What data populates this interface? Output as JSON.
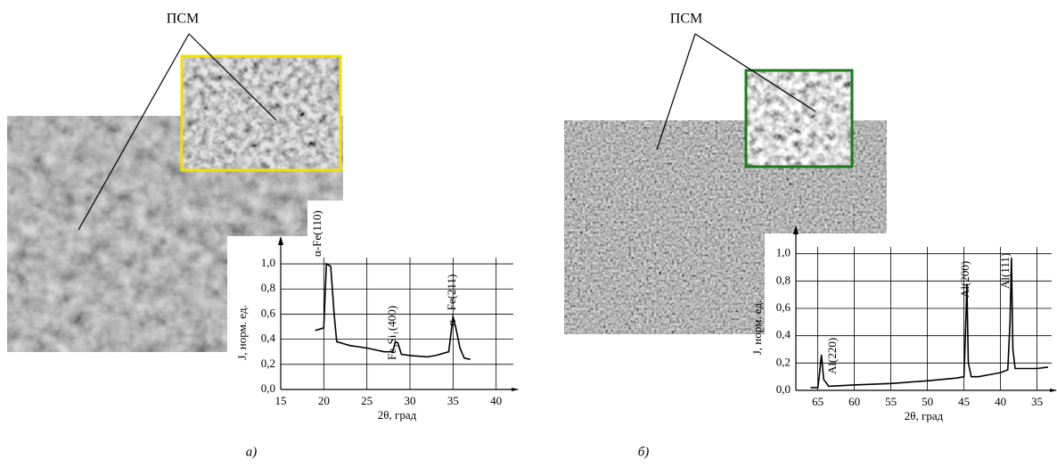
{
  "pointer_label": "ПСМ",
  "chart_data": [
    {
      "type": "line",
      "caption": "а)",
      "pointer_label": "ПСМ",
      "x_label": "2θ, град",
      "y_label": "J, норм. ед.",
      "annotations": [
        "α-Fe(110)",
        "Fe₃Si₁(400)",
        "α - Fe(211)"
      ],
      "xlim": [
        15,
        42
      ],
      "xticks": [
        15,
        20,
        25,
        30,
        35,
        40
      ],
      "ylim": [
        0,
        1.05
      ],
      "yticks": [
        {
          "value": 0,
          "label": "0,0"
        },
        {
          "value": 0.2,
          "label": "0,2"
        },
        {
          "value": 0.4,
          "label": "0,4"
        },
        {
          "value": 0.6,
          "label": "0,6"
        },
        {
          "value": 0.8,
          "label": "0,8"
        },
        {
          "value": 1.0,
          "label": "1,0"
        }
      ],
      "grid": true,
      "series": [
        {
          "color": "#000000",
          "x": [
            19,
            20,
            20.3,
            20.8,
            21.2,
            21.5,
            23,
            25,
            27,
            28,
            28.3,
            28.6,
            29,
            30,
            32,
            33,
            34.5,
            35,
            35.3,
            35.8,
            36.3,
            37
          ],
          "values": [
            0.47,
            0.49,
            1.0,
            0.98,
            0.6,
            0.38,
            0.35,
            0.33,
            0.3,
            0.3,
            0.38,
            0.37,
            0.28,
            0.27,
            0.26,
            0.27,
            0.3,
            0.58,
            0.5,
            0.33,
            0.25,
            0.24
          ]
        }
      ]
    },
    {
      "type": "line",
      "caption": "б)",
      "pointer_label": "ПСМ",
      "x_label": "2θ, град",
      "y_label": "J, норм. ед.",
      "annotations": [
        "Al(220)",
        "Al(200)",
        "Al(111)"
      ],
      "xlim": [
        68,
        33
      ],
      "xticks": [
        65,
        60,
        55,
        50,
        45,
        40,
        35
      ],
      "ylim": [
        0,
        1.05
      ],
      "yticks": [
        {
          "value": 0,
          "label": "0,0"
        },
        {
          "value": 0.2,
          "label": "0,2"
        },
        {
          "value": 0.4,
          "label": "0,4"
        },
        {
          "value": 0.6,
          "label": "0,6"
        },
        {
          "value": 0.8,
          "label": "0,8"
        },
        {
          "value": 1.0,
          "label": "1,0"
        }
      ],
      "grid": true,
      "series": [
        {
          "color": "#000000",
          "x": [
            66,
            65,
            64.8,
            64.5,
            64.2,
            63.5,
            60,
            55,
            50,
            46,
            45,
            44.8,
            44.6,
            44.4,
            44,
            43,
            41,
            40,
            39,
            38.7,
            38.5,
            38.3,
            38,
            35,
            33.5
          ],
          "values": [
            0.02,
            0.02,
            0.1,
            0.26,
            0.08,
            0.03,
            0.04,
            0.05,
            0.07,
            0.09,
            0.1,
            0.4,
            0.78,
            0.2,
            0.1,
            0.1,
            0.12,
            0.13,
            0.15,
            0.5,
            0.97,
            0.3,
            0.16,
            0.16,
            0.17
          ]
        }
      ]
    }
  ]
}
